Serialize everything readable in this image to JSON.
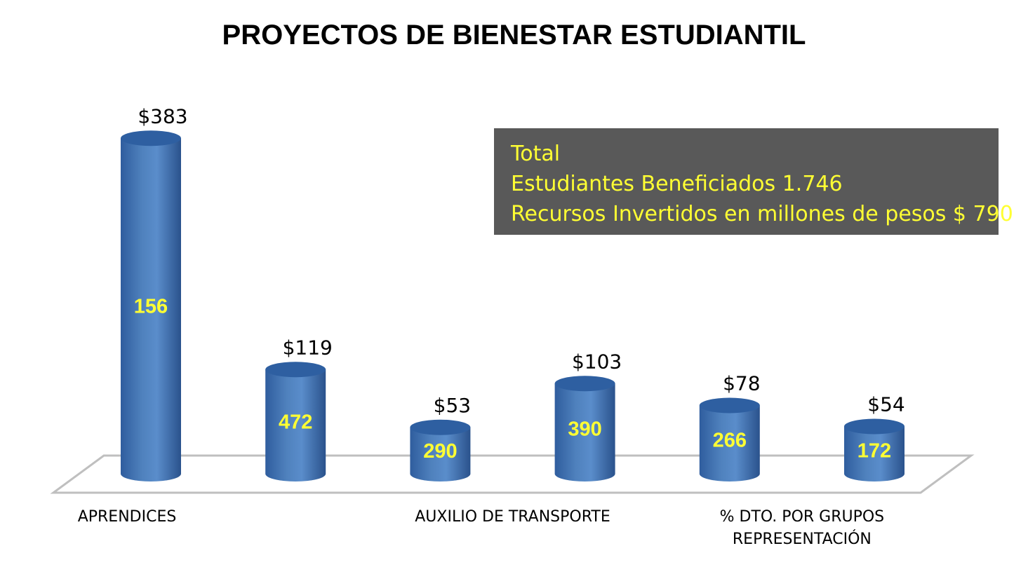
{
  "title": "PROYECTOS DE BIENESTAR ESTUDIANTIL",
  "info_box": {
    "lines": [
      "Total",
      "Estudiantes Beneficiados 1.746",
      "Recursos Invertidos en millones de pesos $ 790"
    ]
  },
  "colors": {
    "bar": "#4f81bd",
    "bar_dark": "#2c5491",
    "inner_label": "#ffff33",
    "info_bg": "#595959"
  },
  "chart_data": {
    "type": "bar",
    "title": "PROYECTOS DE BIENESTAR ESTUDIANTIL",
    "xlabel": "",
    "ylabel": "",
    "categories": [
      "APRENDICES",
      "",
      "AUXILIO DE TRANSPORTE",
      "",
      "% DTO. POR GRUPOS REPRESENTACIÓN",
      ""
    ],
    "category_label_lines": [
      [
        "APRENDICES"
      ],
      [],
      [
        "AUXILIO DE TRANSPORTE"
      ],
      [],
      [
        "% DTO. POR GRUPOS",
        "REPRESENTACIÓN"
      ],
      []
    ],
    "series": [
      {
        "values": [
          383,
          119,
          53,
          103,
          78,
          54
        ],
        "value_labels": [
          "$383",
          "$119",
          "$53",
          "$103",
          "$78",
          "$54"
        ]
      },
      {
        "values": [
          156,
          472,
          290,
          390,
          266,
          172
        ],
        "value_labels": [
          "156",
          "472",
          "290",
          "390",
          "266",
          "172"
        ]
      }
    ],
    "ylim": [
      0,
      400
    ],
    "grid": false,
    "legend": "none"
  }
}
